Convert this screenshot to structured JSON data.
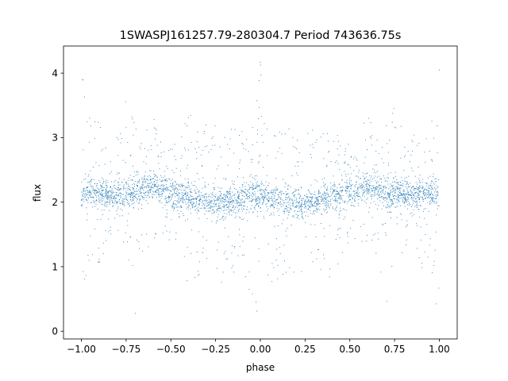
{
  "chart_data": {
    "type": "scatter",
    "title": "1SWASPJ161257.79-280304.7 Period 743636.75s",
    "xlabel": "phase",
    "ylabel": "flux",
    "xlim": [
      -1.1,
      1.1
    ],
    "ylim": [
      -0.12,
      4.42
    ],
    "xticks": [
      {
        "value": -1.0,
        "label": "−1.00"
      },
      {
        "value": -0.75,
        "label": "−0.75"
      },
      {
        "value": -0.5,
        "label": "−0.50"
      },
      {
        "value": -0.25,
        "label": "−0.25"
      },
      {
        "value": 0.0,
        "label": "0.00"
      },
      {
        "value": 0.25,
        "label": "0.25"
      },
      {
        "value": 0.5,
        "label": "0.50"
      },
      {
        "value": 0.75,
        "label": "0.75"
      },
      {
        "value": 1.0,
        "label": "1.00"
      }
    ],
    "yticks": [
      {
        "value": 0,
        "label": "0"
      },
      {
        "value": 1,
        "label": "1"
      },
      {
        "value": 2,
        "label": "2"
      },
      {
        "value": 3,
        "label": "3"
      },
      {
        "value": 4,
        "label": "4"
      }
    ],
    "grid": false,
    "legend": "none",
    "marker_color": "#1f77b4",
    "series": [
      {
        "phase_range": [
          -1.0,
          1.0
        ],
        "profile": {
          "phase": [
            0.0,
            0.05,
            0.1,
            0.15,
            0.2,
            0.25,
            0.3,
            0.35,
            0.4,
            0.45,
            0.5,
            0.55,
            0.6,
            0.65,
            0.7,
            0.75,
            0.8,
            0.85,
            0.9,
            0.95,
            1.0
          ],
          "median_flux": [
            2.1,
            2.1,
            2.05,
            2.0,
            2.0,
            1.95,
            2.0,
            2.05,
            2.1,
            2.1,
            2.15,
            2.2,
            2.25,
            2.2,
            2.15,
            2.15,
            2.1,
            2.1,
            2.15,
            2.15,
            2.1
          ],
          "flux_low": [
            0.0,
            0.5,
            0.7,
            0.9,
            0.6,
            1.0,
            1.0,
            0.8,
            0.6,
            1.2,
            1.3,
            1.4,
            1.3,
            1.2,
            0.0,
            1.3,
            1.2,
            1.5,
            0.8,
            1.0,
            0.0
          ],
          "flux_high": [
            4.2,
            3.0,
            3.1,
            3.2,
            3.0,
            3.3,
            3.2,
            3.2,
            3.4,
            3.0,
            2.9,
            3.0,
            3.4,
            3.0,
            3.2,
            3.6,
            3.1,
            3.0,
            3.3,
            3.3,
            4.2
          ]
        }
      }
    ]
  }
}
